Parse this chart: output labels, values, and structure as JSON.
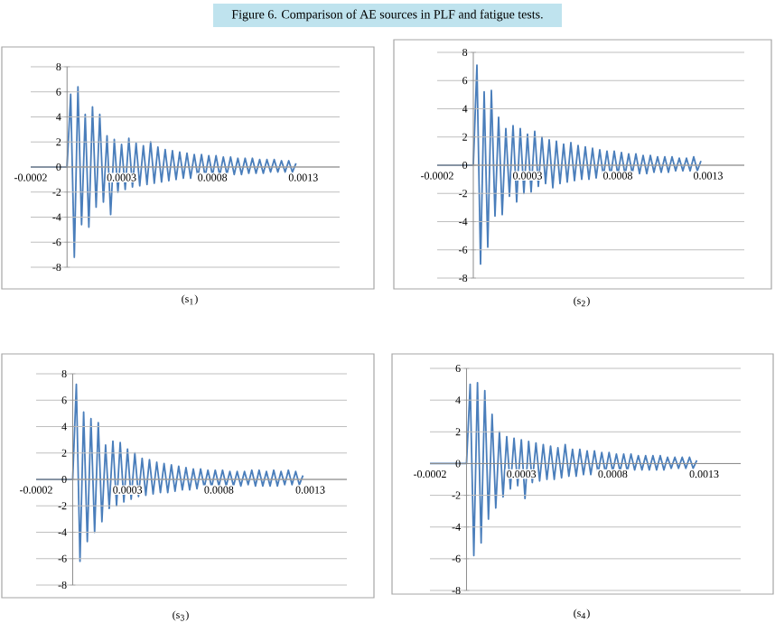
{
  "chart_data": [
    {
      "type": "line",
      "title": "Figure 6. Comparison of AE sources in PLF and fatigue tests.",
      "annotations": [
        "(s$_{1}$)"
      ],
      "color": "#4a7ebb",
      "grid": "y",
      "xlim": [
        -0.0002,
        0.0015
      ],
      "xticks": [
        -0.0002,
        0.0003,
        0.0008,
        0.0013
      ],
      "ylim": [
        -8,
        8
      ],
      "yticks": [
        -8,
        -6,
        -4,
        -2,
        0,
        2,
        4,
        6,
        8
      ],
      "x": [
        -0.0002,
        0,
        2e-05,
        4e-05,
        6e-05,
        8e-05,
        0.0001,
        0.00012,
        0.00014,
        0.00016,
        0.00018,
        0.0002,
        0.00022,
        0.00024,
        0.00026,
        0.00028,
        0.0003,
        0.00032,
        0.00034,
        0.00036,
        0.00038,
        0.0004,
        0.00042,
        0.00044,
        0.00046,
        0.00048,
        0.0005,
        0.00052,
        0.00054,
        0.00056,
        0.00058,
        0.0006,
        0.00062,
        0.00064,
        0.00066,
        0.00068,
        0.0007,
        0.00072,
        0.00074,
        0.00076,
        0.00078,
        0.0008,
        0.00082,
        0.00084,
        0.00086,
        0.00088,
        0.0009,
        0.00092,
        0.00094,
        0.00096,
        0.00098,
        0.001,
        0.00102,
        0.00104,
        0.00106,
        0.00108,
        0.0011,
        0.00112,
        0.00114,
        0.00116,
        0.00118,
        0.0012,
        0.00122,
        0.00124,
        0.00126
      ],
      "values": [
        0,
        0,
        5.8,
        -7.2,
        6.4,
        -4.6,
        4.2,
        -4.8,
        4.8,
        -3.2,
        4.2,
        -2.8,
        2.5,
        -3.8,
        2.2,
        -2.0,
        1.8,
        -1.8,
        2.3,
        -1.6,
        1.9,
        -1.5,
        1.7,
        -1.4,
        2.0,
        -1.3,
        1.6,
        -1.2,
        1.4,
        -1.1,
        1.3,
        -1.0,
        1.2,
        -0.9,
        1.1,
        -0.9,
        1.0,
        -0.8,
        1.0,
        -0.8,
        0.9,
        -0.7,
        0.9,
        -0.7,
        0.8,
        -0.6,
        0.8,
        -0.6,
        0.7,
        -0.6,
        0.7,
        -0.5,
        0.7,
        -0.5,
        0.6,
        -0.5,
        0.6,
        -0.4,
        0.6,
        -0.4,
        0.5,
        -0.4,
        0.5,
        -0.4,
        0.3
      ]
    },
    {
      "type": "line",
      "annotations": [
        "(s$_{2}$)"
      ],
      "color": "#4a7ebb",
      "grid": "y",
      "xlim": [
        -0.0002,
        0.0015
      ],
      "xticks": [
        -0.0002,
        0.0003,
        0.0008,
        0.0013
      ],
      "ylim": [
        -8,
        8
      ],
      "yticks": [
        -8,
        -6,
        -4,
        -2,
        0,
        2,
        4,
        6,
        8
      ],
      "x": [
        -0.0002,
        0,
        2e-05,
        4e-05,
        6e-05,
        8e-05,
        0.0001,
        0.00012,
        0.00014,
        0.00016,
        0.00018,
        0.0002,
        0.00022,
        0.00024,
        0.00026,
        0.00028,
        0.0003,
        0.00032,
        0.00034,
        0.00036,
        0.00038,
        0.0004,
        0.00042,
        0.00044,
        0.00046,
        0.00048,
        0.0005,
        0.00052,
        0.00054,
        0.00056,
        0.00058,
        0.0006,
        0.00062,
        0.00064,
        0.00066,
        0.00068,
        0.0007,
        0.00072,
        0.00074,
        0.00076,
        0.00078,
        0.0008,
        0.00082,
        0.00084,
        0.00086,
        0.00088,
        0.0009,
        0.00092,
        0.00094,
        0.00096,
        0.00098,
        0.001,
        0.00102,
        0.00104,
        0.00106,
        0.00108,
        0.0011,
        0.00112,
        0.00114,
        0.00116,
        0.00118,
        0.0012,
        0.00122,
        0.00124,
        0.00126
      ],
      "values": [
        0,
        0,
        7.1,
        -7.0,
        5.2,
        -5.8,
        5.3,
        -3.6,
        3.4,
        -3.5,
        2.6,
        -2.2,
        2.8,
        -2.6,
        2.6,
        -2.0,
        2.2,
        -1.9,
        2.4,
        -1.5,
        2.0,
        -1.3,
        1.8,
        -1.6,
        1.7,
        -1.3,
        1.5,
        -1.2,
        1.6,
        -1.1,
        1.4,
        -1.0,
        1.3,
        -1.0,
        1.2,
        -0.9,
        1.1,
        -0.8,
        1.0,
        -0.8,
        1.0,
        -0.7,
        0.9,
        -0.7,
        0.8,
        -0.6,
        0.8,
        -0.6,
        0.7,
        -0.6,
        0.7,
        -0.5,
        0.6,
        -0.5,
        0.6,
        -0.5,
        0.6,
        -0.4,
        0.5,
        -0.4,
        0.5,
        -0.4,
        0.6,
        -0.4,
        0.3
      ]
    },
    {
      "type": "line",
      "annotations": [
        "(s$_{3}$)"
      ],
      "color": "#4a7ebb",
      "grid": "y",
      "xlim": [
        -0.0002,
        0.0015
      ],
      "xticks": [
        -0.0002,
        0.0003,
        0.0008,
        0.0013
      ],
      "ylim": [
        -8,
        8
      ],
      "yticks": [
        -8,
        -6,
        -4,
        -2,
        0,
        2,
        4,
        6,
        8
      ],
      "x": [
        -0.0002,
        0,
        2e-05,
        4e-05,
        6e-05,
        8e-05,
        0.0001,
        0.00012,
        0.00014,
        0.00016,
        0.00018,
        0.0002,
        0.00022,
        0.00024,
        0.00026,
        0.00028,
        0.0003,
        0.00032,
        0.00034,
        0.00036,
        0.00038,
        0.0004,
        0.00042,
        0.00044,
        0.00046,
        0.00048,
        0.0005,
        0.00052,
        0.00054,
        0.00056,
        0.00058,
        0.0006,
        0.00062,
        0.00064,
        0.00066,
        0.00068,
        0.0007,
        0.00072,
        0.00074,
        0.00076,
        0.00078,
        0.0008,
        0.00082,
        0.00084,
        0.00086,
        0.00088,
        0.0009,
        0.00092,
        0.00094,
        0.00096,
        0.00098,
        0.001,
        0.00102,
        0.00104,
        0.00106,
        0.00108,
        0.0011,
        0.00112,
        0.00114,
        0.00116,
        0.00118,
        0.0012,
        0.00122,
        0.00124,
        0.00126
      ],
      "values": [
        0,
        0,
        7.2,
        -6.2,
        5.1,
        -4.7,
        4.6,
        -4.0,
        4.3,
        -3.2,
        2.6,
        -2.2,
        2.9,
        -2.0,
        2.8,
        -1.7,
        2.3,
        -1.5,
        2.0,
        -1.3,
        1.6,
        -1.2,
        1.5,
        -1.1,
        1.3,
        -1.0,
        1.2,
        -1.0,
        1.1,
        -0.9,
        1.0,
        -0.8,
        0.9,
        -0.8,
        0.8,
        -0.7,
        0.8,
        -0.6,
        0.7,
        -0.6,
        0.7,
        -0.5,
        0.7,
        -0.5,
        0.6,
        -0.5,
        0.6,
        -0.5,
        0.6,
        -0.4,
        0.7,
        -0.5,
        0.7,
        -0.5,
        0.6,
        -0.5,
        0.7,
        -0.5,
        0.6,
        -0.4,
        0.7,
        -0.4,
        0.6,
        -0.4,
        0.3
      ]
    },
    {
      "type": "line",
      "annotations": [
        "(s$_{4}$)"
      ],
      "color": "#4a7ebb",
      "grid": "y",
      "xlim": [
        -0.0002,
        0.0015
      ],
      "xticks": [
        -0.0002,
        0.0003,
        0.0008,
        0.0013
      ],
      "ylim": [
        -8,
        6
      ],
      "yticks": [
        -8,
        -6,
        -4,
        -2,
        0,
        2,
        4,
        6
      ],
      "x": [
        -0.0002,
        0,
        2e-05,
        4e-05,
        6e-05,
        8e-05,
        0.0001,
        0.00012,
        0.00014,
        0.00016,
        0.00018,
        0.0002,
        0.00022,
        0.00024,
        0.00026,
        0.00028,
        0.0003,
        0.00032,
        0.00034,
        0.00036,
        0.00038,
        0.0004,
        0.00042,
        0.00044,
        0.00046,
        0.00048,
        0.0005,
        0.00052,
        0.00054,
        0.00056,
        0.00058,
        0.0006,
        0.00062,
        0.00064,
        0.00066,
        0.00068,
        0.0007,
        0.00072,
        0.00074,
        0.00076,
        0.00078,
        0.0008,
        0.00082,
        0.00084,
        0.00086,
        0.00088,
        0.0009,
        0.00092,
        0.00094,
        0.00096,
        0.00098,
        0.001,
        0.00102,
        0.00104,
        0.00106,
        0.00108,
        0.0011,
        0.00112,
        0.00114,
        0.00116,
        0.00118,
        0.0012,
        0.00122,
        0.00124,
        0.00126
      ],
      "values": [
        0,
        0,
        5.0,
        -5.8,
        5.1,
        -5.0,
        4.6,
        -3.5,
        3.1,
        -2.8,
        2.0,
        -2.1,
        1.7,
        -1.6,
        1.6,
        -1.4,
        1.5,
        -2.2,
        1.4,
        -1.2,
        1.3,
        -1.1,
        1.2,
        -1.0,
        1.1,
        -1.0,
        1.0,
        -0.9,
        1.2,
        -0.8,
        0.9,
        -0.8,
        0.9,
        -0.7,
        0.8,
        -0.7,
        0.8,
        -0.6,
        0.7,
        -0.6,
        0.7,
        -0.5,
        0.6,
        -0.5,
        0.6,
        -0.5,
        0.6,
        -0.4,
        0.5,
        -0.4,
        0.5,
        -0.4,
        0.5,
        -0.4,
        0.5,
        -0.4,
        0.4,
        -0.3,
        0.4,
        -0.3,
        0.4,
        -0.3,
        0.4,
        -0.3,
        0.2
      ]
    }
  ]
}
